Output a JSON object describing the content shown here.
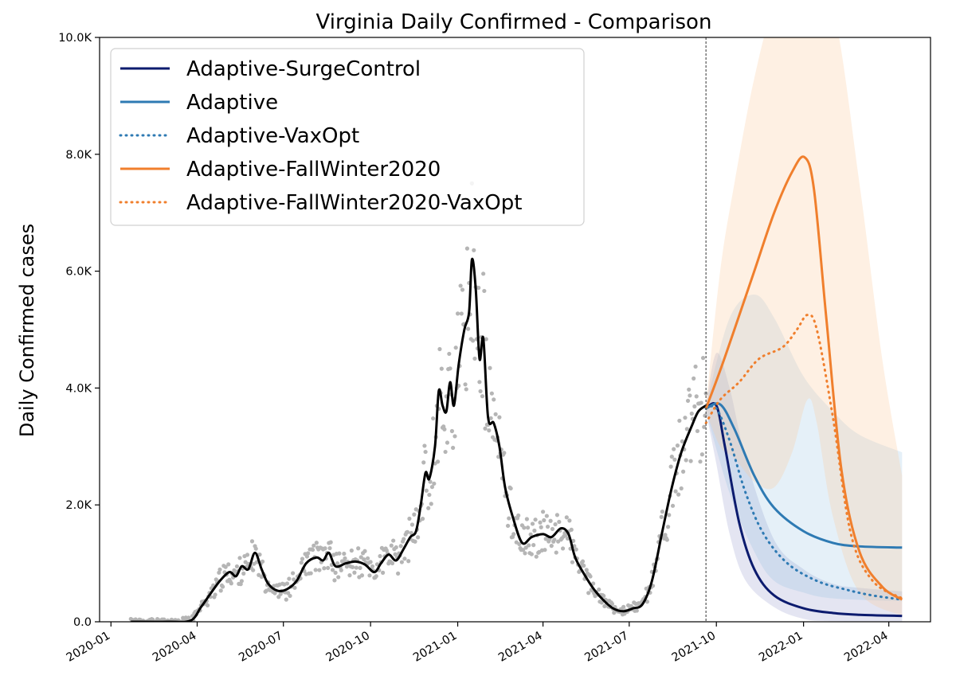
{
  "chart_data": {
    "type": "line",
    "title": "Virginia Daily Confirmed - Comparison",
    "ylabel": "Daily Confirmed cases",
    "xlabel": "",
    "x_range": [
      "2019-12-20",
      "2022-05-15"
    ],
    "ylim": [
      0,
      10000
    ],
    "y_ticks": [
      {
        "value": 0,
        "label": "0.0"
      },
      {
        "value": 2000,
        "label": "2.0K"
      },
      {
        "value": 4000,
        "label": "4.0K"
      },
      {
        "value": 6000,
        "label": "6.0K"
      },
      {
        "value": 8000,
        "label": "8.0K"
      },
      {
        "value": 10000,
        "label": "10.0K"
      }
    ],
    "x_ticks": [
      {
        "date": "2020-01-01",
        "label": "2020-01"
      },
      {
        "date": "2020-04-01",
        "label": "2020-04"
      },
      {
        "date": "2020-07-01",
        "label": "2020-07"
      },
      {
        "date": "2020-10-01",
        "label": "2020-10"
      },
      {
        "date": "2021-01-01",
        "label": "2021-01"
      },
      {
        "date": "2021-04-01",
        "label": "2021-04"
      },
      {
        "date": "2021-07-01",
        "label": "2021-07"
      },
      {
        "date": "2021-10-01",
        "label": "2021-10"
      },
      {
        "date": "2022-01-01",
        "label": "2022-01"
      },
      {
        "date": "2022-04-01",
        "label": "2022-04"
      }
    ],
    "forecast_start": "2021-09-20",
    "grid": false,
    "legend_position": "top-left",
    "observed": {
      "color": "#000000",
      "points": [
        [
          "2020-01-22",
          0
        ],
        [
          "2020-03-01",
          0
        ],
        [
          "2020-03-25",
          20
        ],
        [
          "2020-04-05",
          250
        ],
        [
          "2020-04-15",
          480
        ],
        [
          "2020-04-25",
          700
        ],
        [
          "2020-05-05",
          850
        ],
        [
          "2020-05-12",
          780
        ],
        [
          "2020-05-18",
          950
        ],
        [
          "2020-05-25",
          900
        ],
        [
          "2020-06-01",
          1180
        ],
        [
          "2020-06-08",
          900
        ],
        [
          "2020-06-15",
          650
        ],
        [
          "2020-06-25",
          530
        ],
        [
          "2020-07-05",
          560
        ],
        [
          "2020-07-15",
          700
        ],
        [
          "2020-07-25",
          1000
        ],
        [
          "2020-08-05",
          1100
        ],
        [
          "2020-08-12",
          1050
        ],
        [
          "2020-08-18",
          1180
        ],
        [
          "2020-08-25",
          950
        ],
        [
          "2020-09-05",
          1000
        ],
        [
          "2020-09-15",
          1030
        ],
        [
          "2020-09-25",
          980
        ],
        [
          "2020-10-05",
          850
        ],
        [
          "2020-10-12",
          1000
        ],
        [
          "2020-10-20",
          1150
        ],
        [
          "2020-10-28",
          1050
        ],
        [
          "2020-11-05",
          1250
        ],
        [
          "2020-11-12",
          1450
        ],
        [
          "2020-11-18",
          1550
        ],
        [
          "2020-11-23",
          2000
        ],
        [
          "2020-11-28",
          2550
        ],
        [
          "2020-12-02",
          2450
        ],
        [
          "2020-12-08",
          3000
        ],
        [
          "2020-12-12",
          3950
        ],
        [
          "2020-12-16",
          3700
        ],
        [
          "2020-12-20",
          3600
        ],
        [
          "2020-12-24",
          4100
        ],
        [
          "2020-12-28",
          3700
        ],
        [
          "2021-01-02",
          4400
        ],
        [
          "2021-01-08",
          5000
        ],
        [
          "2021-01-13",
          5300
        ],
        [
          "2021-01-16",
          6200
        ],
        [
          "2021-01-20",
          5700
        ],
        [
          "2021-01-24",
          4500
        ],
        [
          "2021-01-28",
          4850
        ],
        [
          "2021-02-02",
          3500
        ],
        [
          "2021-02-08",
          3400
        ],
        [
          "2021-02-14",
          3000
        ],
        [
          "2021-02-20",
          2300
        ],
        [
          "2021-02-28",
          1800
        ],
        [
          "2021-03-10",
          1350
        ],
        [
          "2021-03-20",
          1450
        ],
        [
          "2021-04-01",
          1500
        ],
        [
          "2021-04-10",
          1450
        ],
        [
          "2021-04-20",
          1600
        ],
        [
          "2021-04-28",
          1500
        ],
        [
          "2021-05-05",
          1100
        ],
        [
          "2021-05-15",
          800
        ],
        [
          "2021-05-25",
          550
        ],
        [
          "2021-06-05",
          350
        ],
        [
          "2021-06-15",
          220
        ],
        [
          "2021-06-25",
          180
        ],
        [
          "2021-07-05",
          230
        ],
        [
          "2021-07-15",
          300
        ],
        [
          "2021-07-25",
          700
        ],
        [
          "2021-08-05",
          1550
        ],
        [
          "2021-08-15",
          2300
        ],
        [
          "2021-08-25",
          2900
        ],
        [
          "2021-09-05",
          3350
        ],
        [
          "2021-09-12",
          3600
        ],
        [
          "2021-09-20",
          3700
        ]
      ]
    },
    "scatter_color": "#b5b5b5",
    "series": [
      {
        "name": "Adaptive-SurgeControl",
        "color": "#0c1b6e",
        "dash": "solid",
        "points": [
          [
            "2021-09-20",
            3650
          ],
          [
            "2021-10-01",
            3700
          ],
          [
            "2021-10-10",
            3000
          ],
          [
            "2021-10-25",
            1700
          ],
          [
            "2021-11-10",
            900
          ],
          [
            "2021-12-01",
            450
          ],
          [
            "2022-01-01",
            230
          ],
          [
            "2022-02-01",
            150
          ],
          [
            "2022-03-01",
            120
          ],
          [
            "2022-04-15",
            100
          ]
        ],
        "band": {
          "color": "#4a4fa8",
          "opacity": 0.15,
          "upper": [
            [
              "2021-09-20",
              3700
            ],
            [
              "2021-10-01",
              4600
            ],
            [
              "2021-10-15",
              4000
            ],
            [
              "2021-11-01",
              2800
            ],
            [
              "2021-12-01",
              1400
            ],
            [
              "2022-01-01",
              900
            ],
            [
              "2022-02-01",
              650
            ],
            [
              "2022-03-01",
              580
            ],
            [
              "2022-04-15",
              520
            ]
          ],
          "lower": [
            [
              "2021-09-20",
              3600
            ],
            [
              "2021-10-01",
              2700
            ],
            [
              "2021-10-15",
              1500
            ],
            [
              "2021-11-01",
              700
            ],
            [
              "2021-12-01",
              250
            ],
            [
              "2022-01-01",
              50
            ],
            [
              "2022-02-01",
              10
            ],
            [
              "2022-04-15",
              0
            ]
          ]
        }
      },
      {
        "name": "Adaptive",
        "color": "#2e7ab3",
        "dash": "solid",
        "points": [
          [
            "2021-09-20",
            3650
          ],
          [
            "2021-10-05",
            3720
          ],
          [
            "2021-10-20",
            3300
          ],
          [
            "2021-11-10",
            2500
          ],
          [
            "2021-12-01",
            1950
          ],
          [
            "2022-01-01",
            1550
          ],
          [
            "2022-02-01",
            1350
          ],
          [
            "2022-03-01",
            1290
          ],
          [
            "2022-04-15",
            1270
          ]
        ],
        "band": {
          "color": "#7fb3dc",
          "opacity": 0.2,
          "upper": [
            [
              "2021-09-20",
              3700
            ],
            [
              "2021-10-15",
              5200
            ],
            [
              "2021-11-10",
              5600
            ],
            [
              "2021-12-01",
              5200
            ],
            [
              "2022-01-01",
              4200
            ],
            [
              "2022-02-01",
              3600
            ],
            [
              "2022-03-01",
              3200
            ],
            [
              "2022-04-15",
              2900
            ]
          ],
          "lower": [
            [
              "2021-09-20",
              3600
            ],
            [
              "2021-10-15",
              2200
            ],
            [
              "2021-11-10",
              1200
            ],
            [
              "2021-12-01",
              700
            ],
            [
              "2022-01-01",
              500
            ],
            [
              "2022-02-01",
              400
            ],
            [
              "2022-04-15",
              350
            ]
          ]
        }
      },
      {
        "name": "Adaptive-VaxOpt",
        "color": "#2e7ab3",
        "dash": "dotted",
        "points": [
          [
            "2021-09-20",
            3650
          ],
          [
            "2021-10-01",
            3650
          ],
          [
            "2021-10-15",
            3100
          ],
          [
            "2021-11-01",
            2200
          ],
          [
            "2021-11-20",
            1500
          ],
          [
            "2021-12-15",
            1000
          ],
          [
            "2022-01-15",
            700
          ],
          [
            "2022-02-15",
            550
          ],
          [
            "2022-03-15",
            450
          ],
          [
            "2022-04-15",
            380
          ]
        ]
      },
      {
        "name": "Adaptive-FallWinter2020",
        "color": "#f07f2d",
        "dash": "solid",
        "points": [
          [
            "2021-09-20",
            3650
          ],
          [
            "2021-10-05",
            4300
          ],
          [
            "2021-10-20",
            5000
          ],
          [
            "2021-11-10",
            6000
          ],
          [
            "2021-12-01",
            7000
          ],
          [
            "2021-12-20",
            7700
          ],
          [
            "2022-01-02",
            7950
          ],
          [
            "2022-01-12",
            7400
          ],
          [
            "2022-01-25",
            5200
          ],
          [
            "2022-02-10",
            2600
          ],
          [
            "2022-03-01",
            1200
          ],
          [
            "2022-03-25",
            600
          ],
          [
            "2022-04-15",
            380
          ]
        ],
        "band": {
          "color": "#fcc89c",
          "opacity": 0.28,
          "upper": [
            [
              "2021-09-20",
              3700
            ],
            [
              "2021-10-05",
              6000
            ],
            [
              "2021-10-20",
              7500
            ],
            [
              "2021-11-10",
              9300
            ],
            [
              "2021-12-01",
              10500
            ],
            [
              "2022-01-01",
              11000
            ],
            [
              "2022-02-01",
              10500
            ],
            [
              "2022-03-01",
              7500
            ],
            [
              "2022-03-25",
              4500
            ],
            [
              "2022-04-15",
              2500
            ]
          ],
          "lower": [
            [
              "2021-09-20",
              3600
            ],
            [
              "2021-10-05",
              3000
            ],
            [
              "2021-10-20",
              2800
            ],
            [
              "2021-11-10",
              2400
            ],
            [
              "2021-12-01",
              2300
            ],
            [
              "2021-12-20",
              2900
            ],
            [
              "2022-01-05",
              3800
            ],
            [
              "2022-01-15",
              3400
            ],
            [
              "2022-02-01",
              1800
            ],
            [
              "2022-03-01",
              500
            ],
            [
              "2022-04-15",
              100
            ]
          ]
        }
      },
      {
        "name": "Adaptive-FallWinter2020-VaxOpt",
        "color": "#f07f2d",
        "dash": "dotted",
        "points": [
          [
            "2021-09-20",
            3400
          ],
          [
            "2021-10-05",
            3800
          ],
          [
            "2021-10-25",
            4100
          ],
          [
            "2021-11-15",
            4500
          ],
          [
            "2021-12-10",
            4700
          ],
          [
            "2021-12-25",
            5000
          ],
          [
            "2022-01-05",
            5250
          ],
          [
            "2022-01-15",
            5000
          ],
          [
            "2022-02-01",
            3500
          ],
          [
            "2022-02-20",
            1500
          ],
          [
            "2022-03-15",
            700
          ],
          [
            "2022-04-15",
            400
          ]
        ]
      }
    ]
  }
}
